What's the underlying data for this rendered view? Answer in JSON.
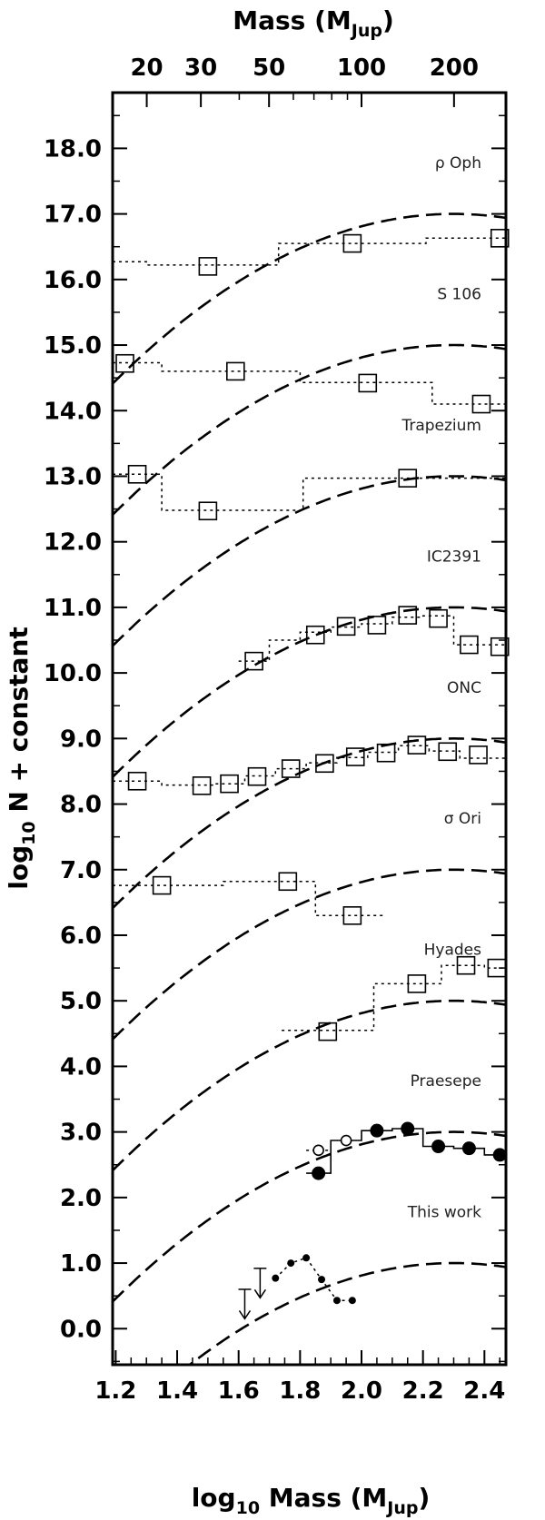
{
  "chart_data": {
    "type": "line",
    "xlabel_main": "log",
    "xlabel_sub": "10",
    "xlabel_rest": " Mass (M",
    "xlabel_unit_sub": "Jup",
    "xlabel_close": ")",
    "top_axis_label_main": "Mass (M",
    "top_axis_label_sub": "Jup",
    "top_axis_label_close": ")",
    "ylabel_main": "log",
    "ylabel_sub": "10",
    "ylabel_rest": " N + constant",
    "xlim": [
      1.19,
      2.47
    ],
    "ylim": [
      -0.55,
      18.85
    ],
    "x_ticks": [
      1.2,
      1.4,
      1.6,
      1.8,
      2.0,
      2.2,
      2.4
    ],
    "x_tick_labels": [
      "1.2",
      "1.4",
      "1.6",
      "1.8",
      "2.0",
      "2.2",
      "2.4"
    ],
    "y_ticks": [
      0,
      1,
      2,
      3,
      4,
      5,
      6,
      7,
      8,
      9,
      10,
      11,
      12,
      13,
      14,
      15,
      16,
      17,
      18
    ],
    "y_tick_labels": [
      "0.0",
      "1.0",
      "2.0",
      "3.0",
      "4.0",
      "5.0",
      "6.0",
      "7.0",
      "8.0",
      "9.0",
      "10.0",
      "11.0",
      "12.0",
      "13.0",
      "14.0",
      "15.0",
      "16.0",
      "17.0",
      "18.0"
    ],
    "top_ticks": [
      20,
      30,
      50,
      100,
      200
    ],
    "top_tick_labels": [
      "20",
      "30",
      "50",
      "100",
      "200"
    ],
    "top_minor_ticks": [
      40,
      60,
      70,
      80,
      90,
      300
    ],
    "reference_curve": {
      "peak_log_mass": 2.3,
      "curvature": 2.1,
      "offsets": [
        1.0,
        3.0,
        5.0,
        7.0,
        9.0,
        11.0,
        13.0,
        15.0,
        17.0
      ]
    },
    "series": [
      {
        "name": "ρ Oph",
        "marker": "open-square",
        "points": [
          [
            1.5,
            16.2
          ],
          [
            1.97,
            16.55
          ],
          [
            2.45,
            16.63
          ]
        ],
        "steps": [
          [
            1.19,
            1.3,
            16.27
          ],
          [
            1.3,
            1.73,
            16.22
          ],
          [
            1.73,
            2.21,
            16.55
          ],
          [
            2.21,
            2.47,
            16.63
          ]
        ]
      },
      {
        "name": "S 106",
        "marker": "open-square",
        "points": [
          [
            1.23,
            14.72
          ],
          [
            1.59,
            14.6
          ],
          [
            2.02,
            14.42
          ],
          [
            2.39,
            14.1
          ]
        ],
        "steps": [
          [
            1.19,
            1.35,
            14.73
          ],
          [
            1.35,
            1.8,
            14.6
          ],
          [
            1.8,
            2.23,
            14.43
          ],
          [
            2.23,
            2.47,
            14.1
          ]
        ]
      },
      {
        "name": "Trapezium",
        "marker": "open-square",
        "points": [
          [
            1.27,
            13.03
          ],
          [
            1.5,
            12.47
          ],
          [
            2.15,
            12.97
          ]
        ],
        "steps": [
          [
            1.19,
            1.35,
            13.03
          ],
          [
            1.35,
            1.81,
            12.48
          ],
          [
            1.81,
            2.47,
            12.97
          ]
        ]
      },
      {
        "name": "IC2391",
        "marker": "open-square",
        "points": [
          [
            1.65,
            10.18
          ],
          [
            1.85,
            10.58
          ],
          [
            1.95,
            10.71
          ],
          [
            2.05,
            10.73
          ],
          [
            2.15,
            10.88
          ],
          [
            2.25,
            10.83
          ],
          [
            2.35,
            10.43
          ],
          [
            2.45,
            10.4
          ]
        ],
        "steps": [
          [
            1.6,
            1.7,
            10.18
          ],
          [
            1.7,
            1.8,
            10.5
          ],
          [
            1.8,
            1.9,
            10.62
          ],
          [
            1.9,
            2.0,
            10.7
          ],
          [
            2.0,
            2.1,
            10.75
          ],
          [
            2.1,
            2.2,
            10.85
          ],
          [
            2.2,
            2.3,
            10.87
          ],
          [
            2.3,
            2.4,
            10.43
          ],
          [
            2.4,
            2.47,
            10.43
          ]
        ]
      },
      {
        "name": "ONC",
        "marker": "open-square",
        "points": [
          [
            1.27,
            8.35
          ],
          [
            1.48,
            8.28
          ],
          [
            1.57,
            8.31
          ],
          [
            1.66,
            8.42
          ],
          [
            1.77,
            8.54
          ],
          [
            1.88,
            8.62
          ],
          [
            1.98,
            8.72
          ],
          [
            2.08,
            8.78
          ],
          [
            2.18,
            8.9
          ],
          [
            2.28,
            8.8
          ],
          [
            2.38,
            8.75
          ]
        ],
        "steps": [
          [
            1.19,
            1.35,
            8.35
          ],
          [
            1.35,
            1.52,
            8.29
          ],
          [
            1.52,
            1.62,
            8.31
          ],
          [
            1.62,
            1.72,
            8.43
          ],
          [
            1.72,
            1.82,
            8.54
          ],
          [
            1.82,
            1.92,
            8.63
          ],
          [
            1.92,
            2.02,
            8.71
          ],
          [
            2.02,
            2.12,
            8.79
          ],
          [
            2.12,
            2.22,
            8.89
          ],
          [
            2.22,
            2.32,
            8.81
          ],
          [
            2.32,
            2.47,
            8.7
          ]
        ]
      },
      {
        "name": "σ Ori",
        "marker": "open-square",
        "points": [
          [
            1.35,
            6.76
          ],
          [
            1.76,
            6.82
          ],
          [
            1.97,
            6.3
          ]
        ],
        "steps": [
          [
            1.19,
            1.55,
            6.76
          ],
          [
            1.55,
            1.85,
            6.82
          ],
          [
            1.85,
            2.08,
            6.3
          ]
        ]
      },
      {
        "name": "Hyades",
        "marker": "open-square",
        "points": [
          [
            1.89,
            4.53
          ],
          [
            2.18,
            5.26
          ],
          [
            2.34,
            5.54
          ],
          [
            2.44,
            5.5
          ]
        ],
        "steps": [
          [
            1.74,
            2.04,
            4.55
          ],
          [
            2.04,
            2.26,
            5.26
          ],
          [
            2.26,
            2.4,
            5.54
          ],
          [
            2.4,
            2.47,
            5.5
          ]
        ]
      },
      {
        "name": "Praesepe",
        "marker": "filled-circle",
        "points": [
          [
            1.86,
            2.37
          ],
          [
            2.05,
            3.02
          ],
          [
            2.15,
            3.05
          ],
          [
            2.25,
            2.78
          ],
          [
            2.35,
            2.75
          ],
          [
            2.45,
            2.65
          ]
        ],
        "open_points": [
          [
            1.86,
            2.72
          ],
          [
            1.95,
            2.87
          ]
        ],
        "steps": [
          [
            1.82,
            1.9,
            2.37
          ],
          [
            1.9,
            2.0,
            2.87
          ],
          [
            2.0,
            2.1,
            3.02
          ],
          [
            2.1,
            2.2,
            3.05
          ],
          [
            2.2,
            2.3,
            2.78
          ],
          [
            2.3,
            2.4,
            2.75
          ],
          [
            2.4,
            2.47,
            2.65
          ]
        ],
        "dotted_extension": [
          [
            1.82,
            1.9,
            2.72
          ]
        ]
      },
      {
        "name": "This work",
        "marker": "small-filled-circle",
        "points": [
          [
            1.72,
            0.77
          ],
          [
            1.77,
            1.0
          ],
          [
            1.82,
            1.08
          ],
          [
            1.87,
            0.75
          ],
          [
            1.92,
            0.43
          ],
          [
            1.97,
            0.43
          ]
        ],
        "upper_limits": [
          [
            1.62,
            0.6
          ],
          [
            1.67,
            0.92
          ]
        ]
      }
    ],
    "grid": false,
    "legend": "none"
  }
}
